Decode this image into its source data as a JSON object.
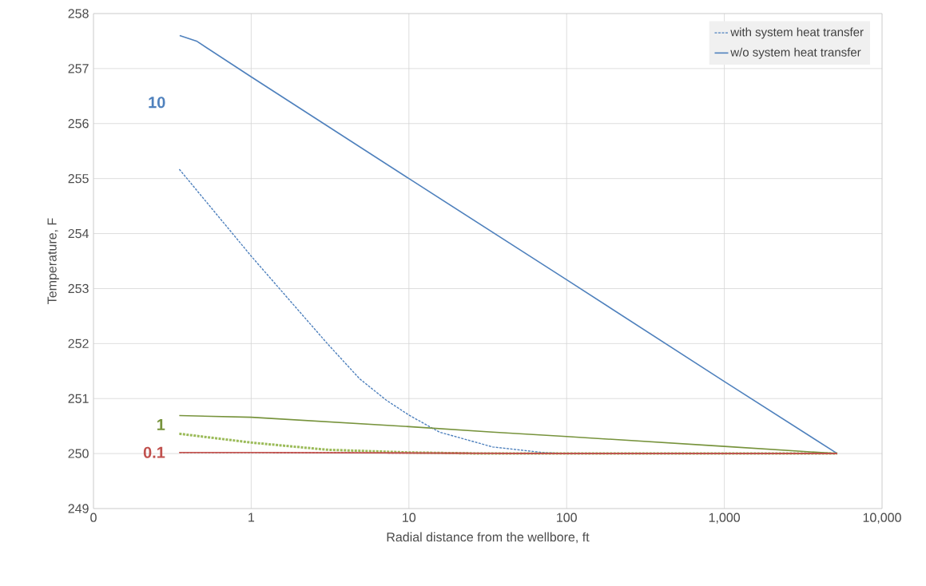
{
  "chart_data": {
    "type": "line",
    "xlabel": "Radial distance from the wellbore, ft",
    "ylabel": "Temperature, F",
    "log": "x",
    "xlim": [
      0.1,
      10000
    ],
    "ylim": [
      249,
      258
    ],
    "xticks": [
      {
        "value": 0.1,
        "label": "0"
      },
      1,
      10,
      100,
      {
        "value": 1000,
        "label": "1,000"
      },
      {
        "value": 10000,
        "label": "10,000"
      }
    ],
    "yticks": [
      249,
      250,
      251,
      252,
      253,
      254,
      255,
      256,
      257,
      258
    ],
    "grid": true,
    "legend": "top right",
    "marker": "none",
    "series": [
      {
        "name": "with system heat transfer",
        "color": "#4f81bd",
        "line_style": "dashed",
        "x": [
          0.35,
          1,
          1.52,
          3.06,
          4.87,
          7.19,
          10,
          15.6,
          34,
          70,
          100,
          1000,
          5200
        ],
        "values": [
          255.17,
          253.59,
          252.99,
          251.99,
          251.36,
          250.97,
          250.7,
          250.39,
          250.12,
          250.02,
          250.0,
          250.0,
          250.0
        ]
      },
      {
        "name": "w/o system heat transfer",
        "color": "#4f81bd",
        "line_style": "solid",
        "x": [
          0.352,
          0.45,
          1,
          10,
          100,
          1000,
          5200
        ],
        "values": [
          257.6,
          257.5,
          256.85,
          255.0,
          253.16,
          251.31,
          250.0
        ]
      },
      {
        "color": "#9bbb59",
        "line_style": "dashed",
        "x": [
          0.35,
          1,
          3,
          10,
          30,
          100,
          1000,
          5200
        ],
        "values": [
          250.36,
          250.2,
          250.07,
          250.02,
          250.0,
          250.0,
          250.0,
          250.0
        ]
      },
      {
        "color": "#77933c",
        "line_style": "solid",
        "x": [
          0.35,
          1,
          10,
          34,
          100,
          1000,
          5200
        ],
        "values": [
          250.69,
          250.66,
          250.49,
          250.39,
          250.31,
          250.13,
          250.0
        ]
      },
      {
        "color": "#c0504d",
        "line_style": "solid",
        "x": [
          0.35,
          1,
          10,
          100,
          1000,
          5200
        ],
        "values": [
          250.02,
          250.02,
          250.01,
          250.0,
          250.0,
          250.0
        ]
      },
      {
        "color": "#c0504d",
        "line_style": "dashed",
        "x": [
          0.35,
          1,
          10,
          100,
          1000,
          5200
        ],
        "values": [
          250.02,
          250.02,
          250.01,
          250.0,
          250.0,
          250.0
        ]
      }
    ],
    "annotations": [
      "10",
      "1",
      "0.1"
    ]
  }
}
